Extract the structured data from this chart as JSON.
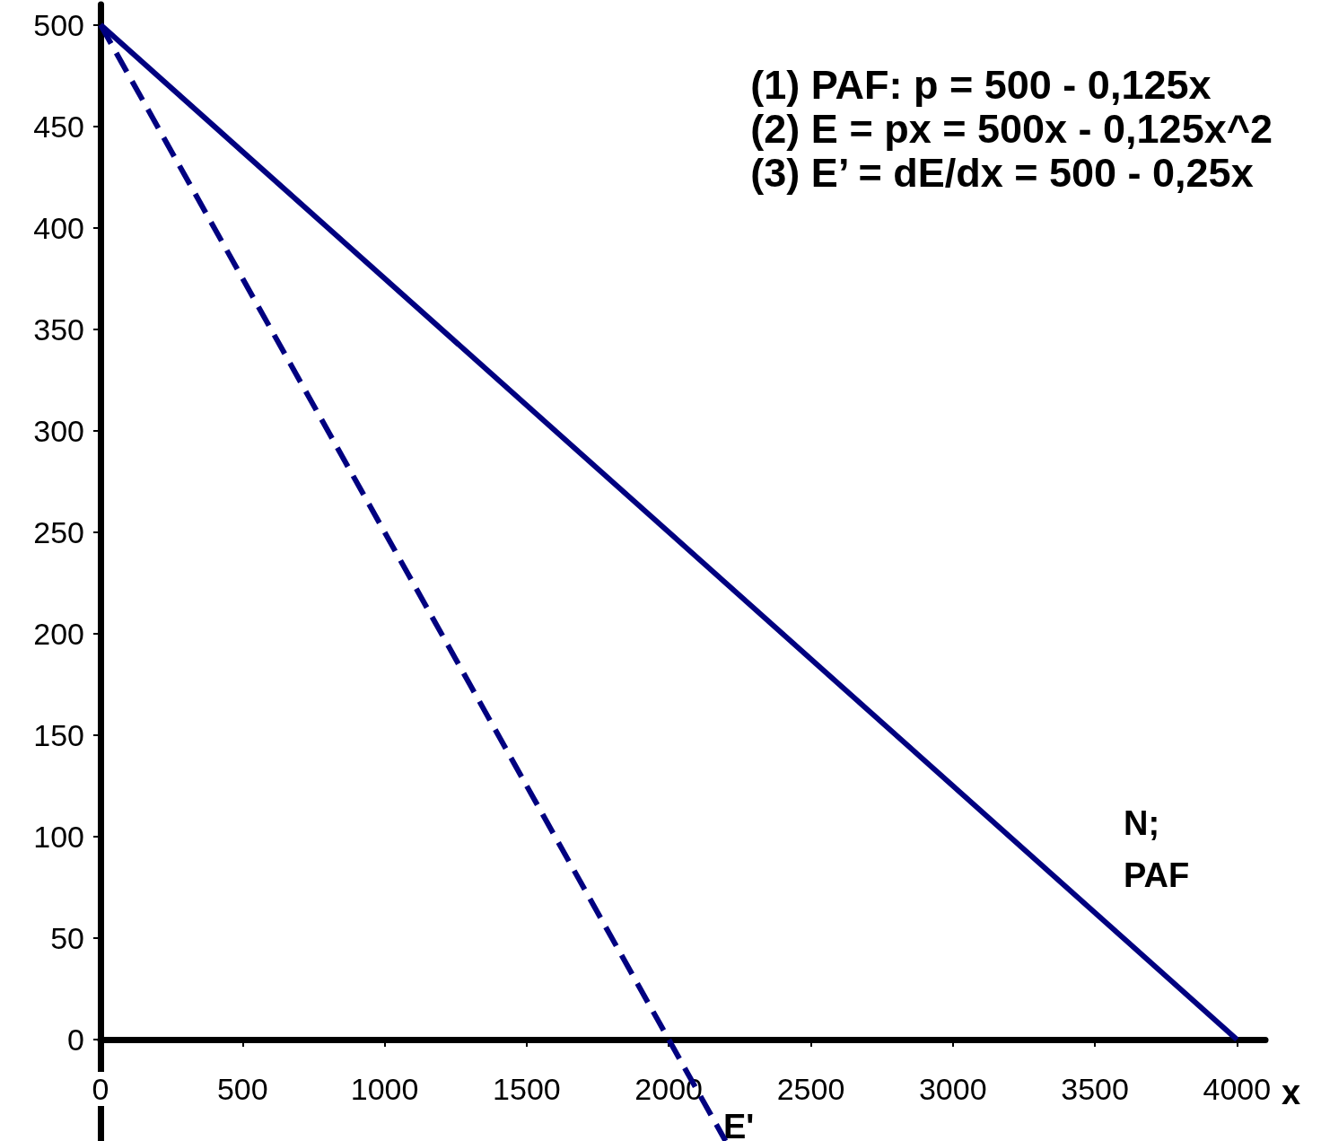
{
  "chart_data": {
    "type": "line",
    "xlabel": "x",
    "xlim": [
      0,
      4100
    ],
    "xticks": [
      0,
      500,
      1000,
      1500,
      2000,
      2500,
      3000,
      3500,
      4000
    ],
    "ylim": [
      -50,
      510
    ],
    "yticks": [
      0,
      50,
      100,
      150,
      200,
      250,
      300,
      350,
      400,
      450,
      500
    ],
    "grid": false,
    "marker": "none",
    "series": [
      {
        "color": "#000080",
        "x": [
          0,
          4000
        ],
        "values": [
          500,
          0
        ],
        "line_style": "solid"
      },
      {
        "color": "#000080",
        "x": [
          0,
          2200
        ],
        "values": [
          500,
          -50
        ],
        "line_style": "dashed"
      }
    ],
    "annotations": [
      "(1) PAF: p = 500 - 0,125x",
      "(2) E = px = 500x - 0,125x^2",
      "(3) E’ = dE/dx = 500 - 0,25x",
      "N;\nPAF",
      "E'"
    ]
  }
}
